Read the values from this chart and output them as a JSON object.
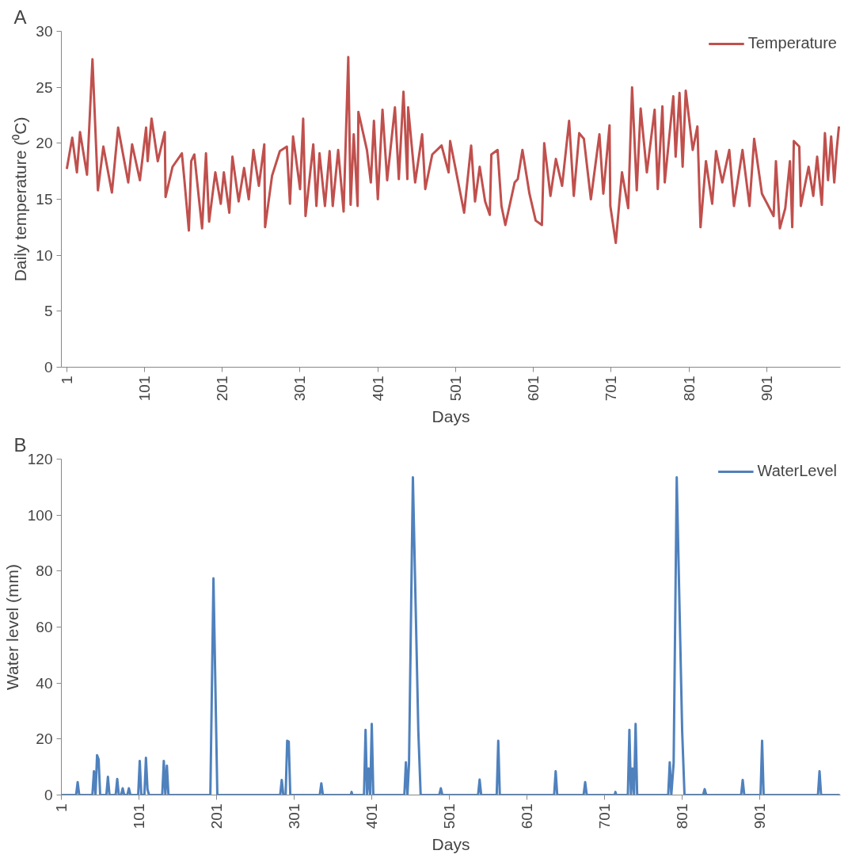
{
  "chart_data": [
    {
      "type": "line",
      "title": "A",
      "xlabel": "Days",
      "ylabel": "Daily temperature (⁰C)",
      "xlim": [
        -6,
        996
      ],
      "ylim": [
        0,
        30
      ],
      "xticks": [
        1,
        101,
        201,
        301,
        401,
        501,
        601,
        701,
        801,
        901
      ],
      "yticks": [
        0,
        5,
        10,
        15,
        20,
        25,
        30
      ],
      "legend": "top right",
      "series": [
        {
          "name": "Temperature",
          "color": "#c0504d",
          "x": [
            1,
            8,
            14,
            18,
            27,
            34,
            41,
            48,
            59,
            67,
            80,
            85,
            95,
            103,
            105,
            110,
            118,
            127,
            128,
            137,
            149,
            152,
            158,
            161,
            165,
            171,
            175,
            180,
            184,
            192,
            199,
            203,
            210,
            214,
            222,
            229,
            235,
            241,
            248,
            255,
            256,
            265,
            275,
            284,
            288,
            292,
            301,
            305,
            308,
            318,
            322,
            326,
            333,
            339,
            343,
            350,
            357,
            363,
            366,
            370,
            375,
            376,
            387,
            392,
            396,
            401,
            407,
            413,
            423,
            428,
            434,
            439,
            440,
            449,
            458,
            462,
            471,
            483,
            492,
            494,
            512,
            521,
            526,
            532,
            539,
            545,
            547,
            555,
            560,
            565,
            577,
            581,
            587,
            596,
            604,
            612,
            615,
            623,
            630,
            638,
            647,
            653,
            660,
            666,
            675,
            686,
            691,
            699,
            700,
            707,
            715,
            723,
            728,
            734,
            739,
            747,
            757,
            761,
            767,
            770,
            781,
            784,
            789,
            793,
            797,
            806,
            812,
            816,
            823,
            831,
            836,
            844,
            853,
            859,
            870,
            879,
            885,
            895,
            910,
            913,
            918,
            925,
            931,
            934,
            936,
            943,
            945,
            955,
            961,
            966,
            972,
            976,
            980,
            984,
            988,
            991,
            994
          ],
          "values": [
            17.7,
            20.5,
            17.4,
            21,
            17.2,
            27.5,
            15.8,
            19.7,
            15.6,
            21.4,
            16.5,
            19.9,
            16.7,
            21.4,
            18.4,
            22.2,
            18.4,
            21,
            15.2,
            17.9,
            19.1,
            16.9,
            12.2,
            18.4,
            19,
            15,
            12.4,
            19.1,
            13,
            17.4,
            14.6,
            17.4,
            13.8,
            18.8,
            14.8,
            17.8,
            15,
            19.4,
            16.2,
            19.9,
            12.5,
            17.1,
            19.3,
            19.7,
            14.6,
            20.6,
            15.9,
            22.2,
            13.5,
            19.9,
            14.4,
            19.1,
            14.4,
            19.3,
            14.4,
            19.4,
            13.9,
            27.7,
            14.5,
            20.8,
            14.4,
            22.8,
            19.4,
            16.5,
            22,
            15,
            23,
            16.7,
            23.2,
            16.8,
            24.6,
            16.8,
            23.2,
            16.5,
            20.8,
            15.9,
            19,
            19.8,
            17.4,
            20.2,
            13.8,
            19.8,
            14.8,
            17.9,
            14.8,
            13.6,
            19,
            19.4,
            14.4,
            12.7,
            16.5,
            16.8,
            19.4,
            15.5,
            13.1,
            12.7,
            20,
            15.3,
            18.6,
            16.2,
            22,
            15.3,
            20.9,
            20.4,
            15,
            20.8,
            15.5,
            21.6,
            14.4,
            11.1,
            17.4,
            14.2,
            25,
            15.8,
            23.1,
            17.4,
            23,
            15.9,
            23.3,
            16.5,
            24.2,
            18.8,
            24.5,
            17.9,
            24.7,
            19.4,
            21.5,
            12.5,
            18.4,
            14.6,
            19.3,
            16.5,
            19.4,
            14.4,
            19.4,
            14.4,
            20.4,
            15.5,
            13.5,
            18.4,
            12.4,
            14.2,
            18.4,
            12.5,
            20.2,
            19.7,
            14.4,
            17.9,
            15.3,
            18.8,
            14.5,
            20.9,
            16.7,
            20.6,
            16.5,
            19.3,
            21.5
          ]
        }
      ]
    },
    {
      "type": "line",
      "title": "B",
      "xlabel": "Days",
      "ylabel": "Water level (mm)",
      "xlim": [
        1,
        1005
      ],
      "ylim": [
        0,
        120
      ],
      "xticks": [
        1,
        101,
        201,
        301,
        401,
        501,
        601,
        701,
        801,
        901
      ],
      "yticks": [
        0,
        20,
        40,
        60,
        80,
        100,
        120
      ],
      "legend": "top right",
      "series": [
        {
          "name": "WaterLevel",
          "color": "#4f81bd",
          "x": [
            1,
            20,
            22,
            24,
            41,
            43,
            45,
            47,
            49,
            51,
            59,
            61,
            63,
            71,
            73,
            75,
            78,
            80,
            82,
            86,
            88,
            90,
            100,
            102,
            104,
            108,
            110,
            112,
            114,
            131,
            133,
            135,
            137,
            139,
            193,
            197,
            202,
            283,
            285,
            287,
            290,
            292,
            294,
            296,
            334,
            336,
            338,
            374,
            375,
            376,
            391,
            393,
            395,
            397,
            399,
            401,
            403,
            443,
            445,
            447,
            449,
            454,
            461,
            464,
            488,
            490,
            492,
            538,
            540,
            542,
            562,
            564,
            566,
            636,
            638,
            640,
            674,
            676,
            678,
            714,
            715,
            716,
            731,
            733,
            735,
            737,
            739,
            741,
            743,
            783,
            785,
            787,
            790,
            794,
            801,
            804,
            828,
            830,
            832,
            877,
            879,
            881,
            902,
            904,
            906,
            976,
            978,
            980,
            1004
          ],
          "values": [
            0,
            0,
            4.6,
            0,
            0,
            8.5,
            0,
            14.2,
            12.7,
            0,
            0,
            6.5,
            0,
            0,
            5.7,
            0,
            0,
            2.4,
            0,
            0,
            2.4,
            0,
            0,
            12.2,
            0,
            0,
            13.3,
            2,
            0,
            0,
            12.2,
            0,
            10.5,
            0,
            0,
            77.4,
            0,
            0,
            5.4,
            0,
            0,
            19.4,
            19.1,
            0,
            0,
            4.2,
            0,
            0,
            1.1,
            0,
            0,
            23.3,
            0,
            9.5,
            0,
            25.4,
            0,
            0,
            11.7,
            0,
            11.4,
            113.5,
            22.8,
            0,
            0,
            2.4,
            0,
            0,
            5.5,
            0,
            0,
            19.4,
            0,
            0,
            8.5,
            0,
            0,
            4.6,
            0,
            0,
            1.1,
            0,
            0,
            23.3,
            0,
            9.5,
            0,
            25.4,
            0,
            0,
            11.7,
            0,
            11.4,
            113.5,
            22.8,
            0,
            0,
            2.1,
            0,
            0,
            5.4,
            0,
            0,
            19.4,
            0,
            0,
            8.5,
            0,
            0
          ]
        }
      ]
    }
  ]
}
